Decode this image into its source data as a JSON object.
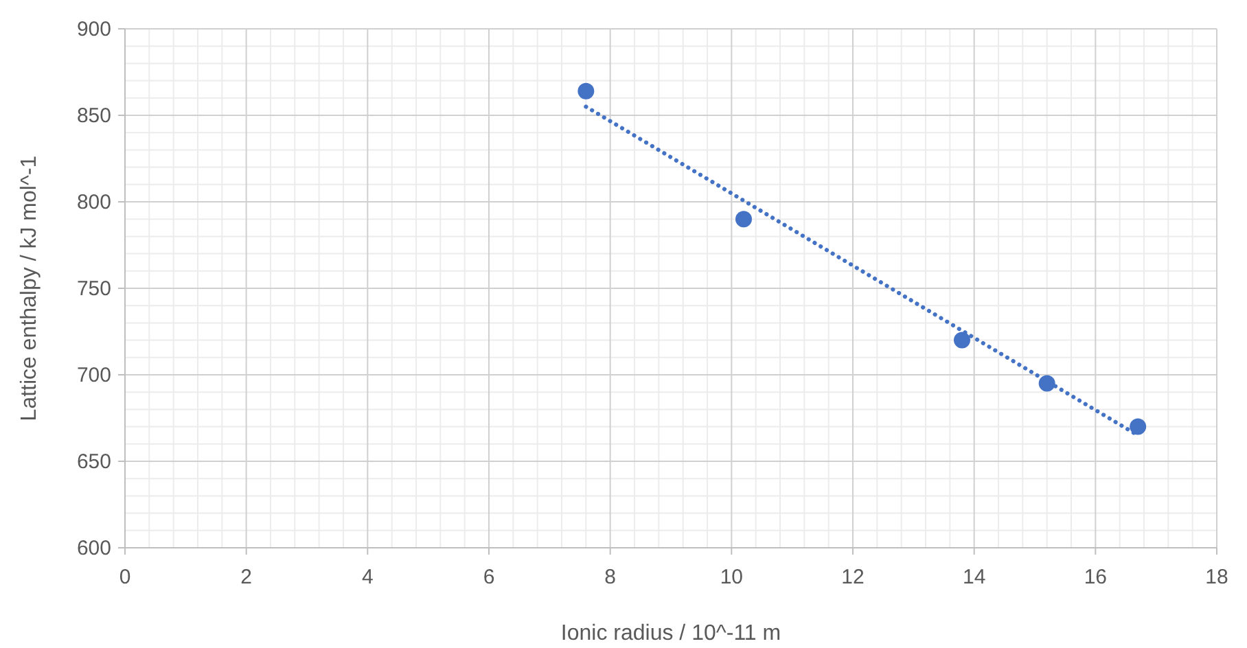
{
  "chart_data": {
    "type": "scatter",
    "xlabel": "Ionic radius / 10^-11 m",
    "ylabel": "Lattice enthalpy / kJ mol^-1",
    "xlim": [
      0,
      18
    ],
    "xticks": [
      0,
      2,
      4,
      6,
      8,
      10,
      12,
      14,
      16,
      18
    ],
    "ylim": [
      600,
      900
    ],
    "yticks": [
      600,
      650,
      700,
      750,
      800,
      850,
      900
    ],
    "grid": true,
    "series": [
      {
        "color": "#4472c4",
        "marker": "circle",
        "x": [
          7.6,
          10.2,
          13.8,
          15.2,
          16.7
        ],
        "values": [
          864,
          790,
          720,
          695,
          670
        ]
      },
      {
        "type": "line",
        "color": "#4472c4",
        "marker": "none",
        "line_style": "dotted",
        "x": [
          7.6,
          16.7
        ],
        "values": [
          855,
          665
        ]
      }
    ]
  }
}
